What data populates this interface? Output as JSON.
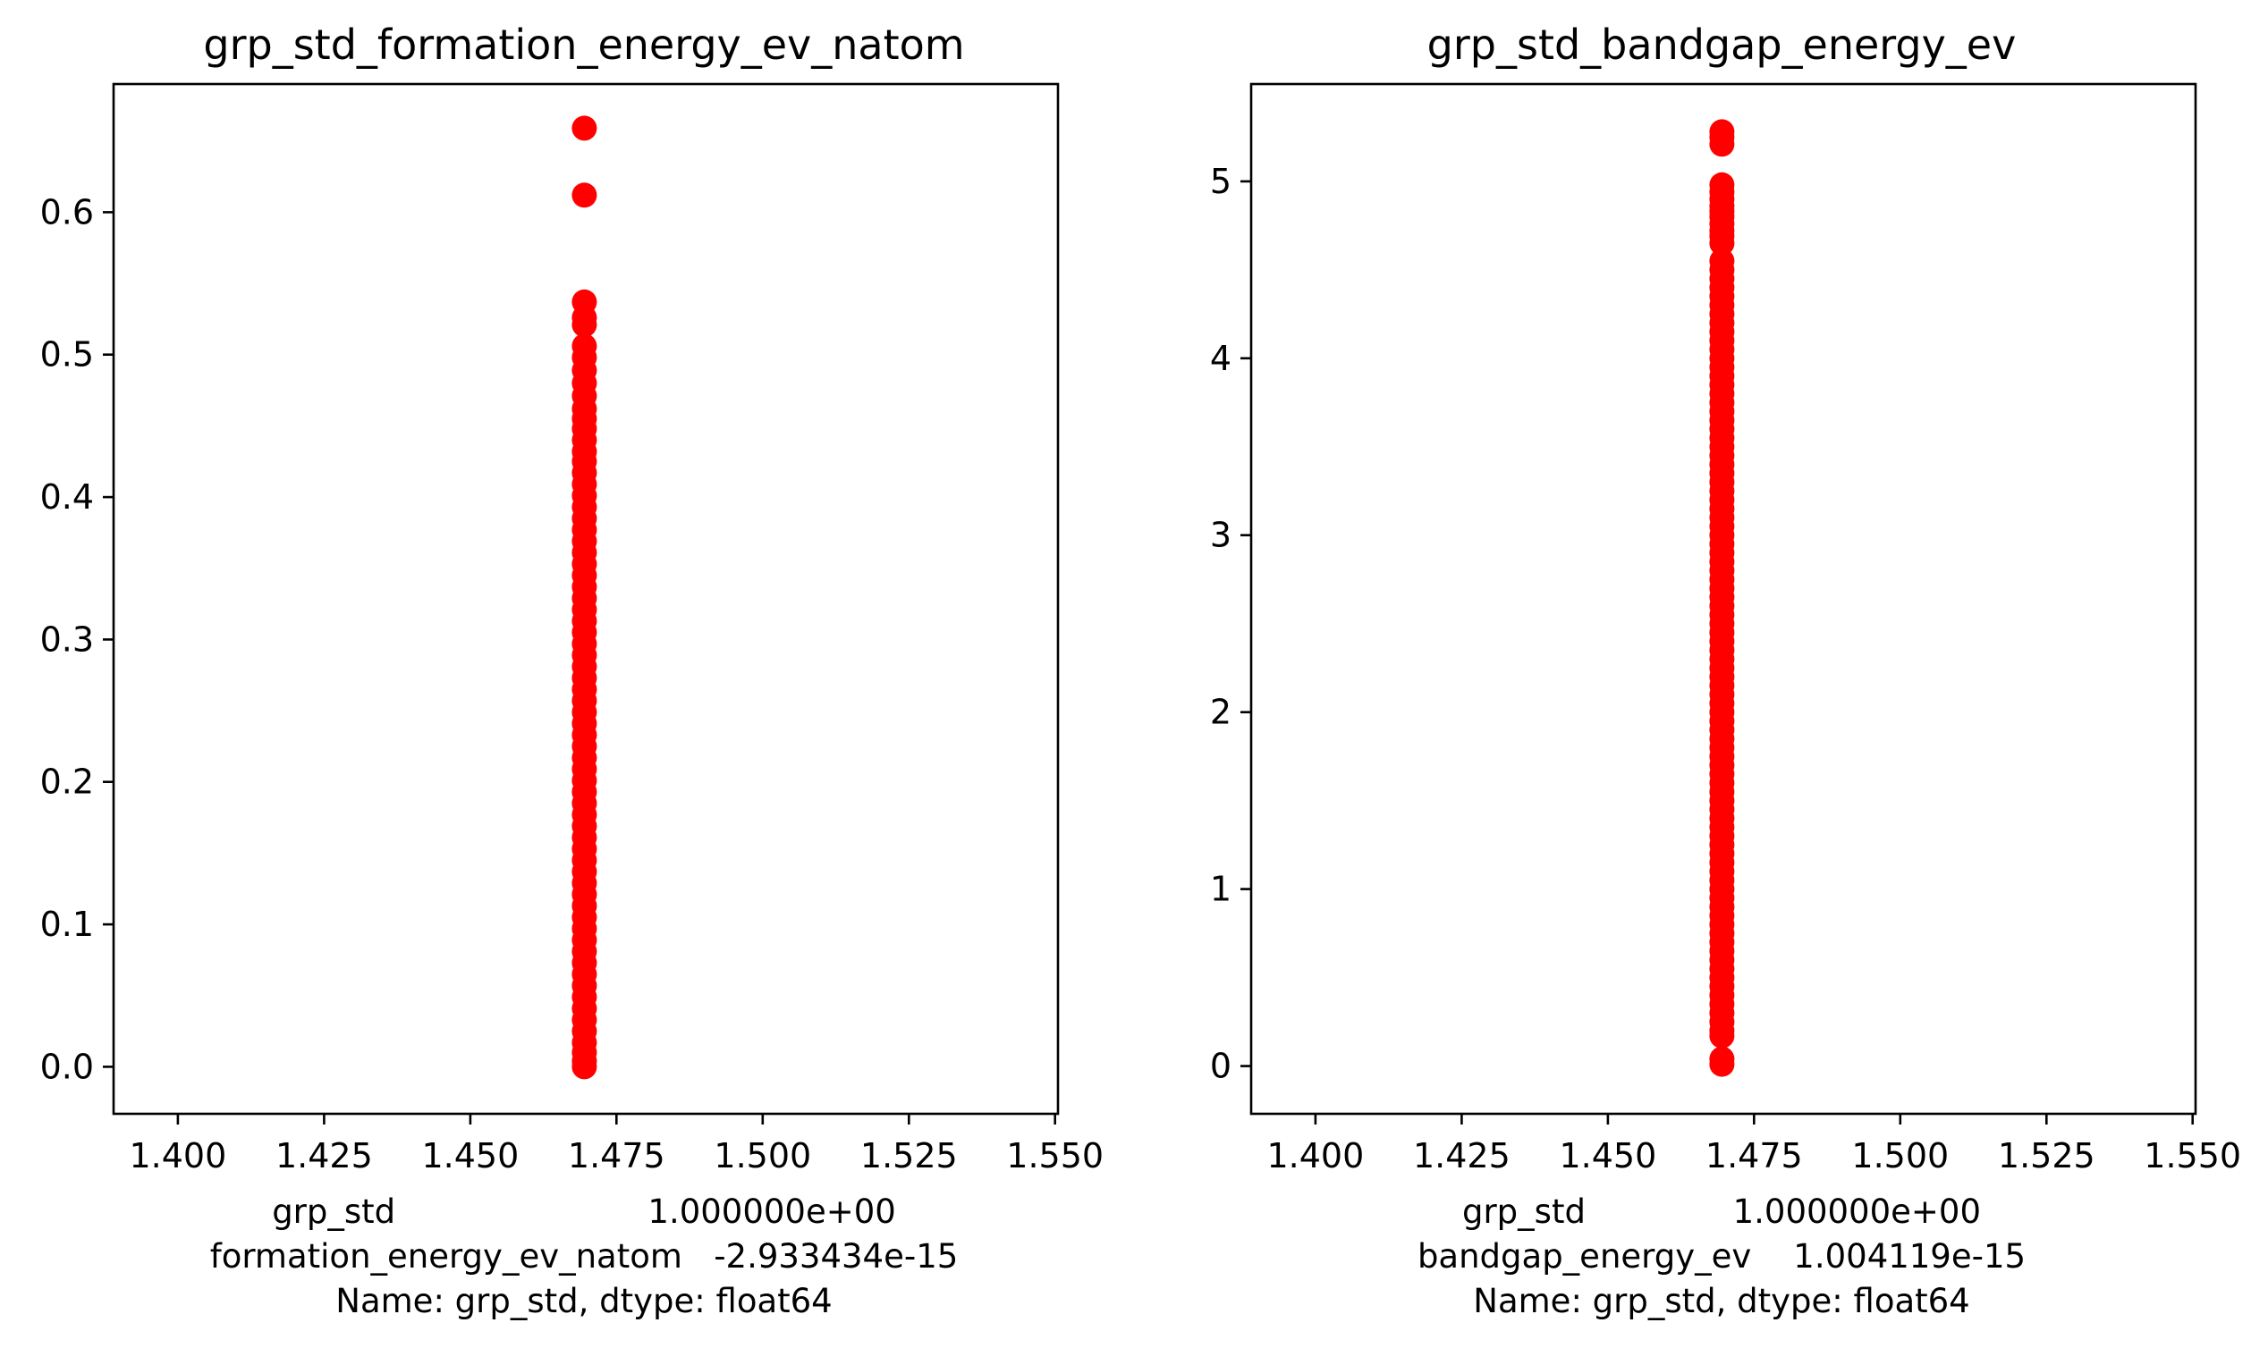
{
  "chart_data": [
    {
      "type": "scatter",
      "title": "grp_std_formation_energy_ev_natom",
      "xlabel_lines": [
        "grp_std                        1.000000e+00",
        "formation_energy_ev_natom   -2.933434e-15",
        "Name: grp_std, dtype: float64"
      ],
      "ylabel": "",
      "xlim": [
        1.389,
        1.5505
      ],
      "ylim": [
        -0.033,
        0.69
      ],
      "xticks": [
        1.4,
        1.425,
        1.45,
        1.475,
        1.5,
        1.525,
        1.55
      ],
      "xtick_labels": [
        "1.400",
        "1.425",
        "1.450",
        "1.475",
        "1.500",
        "1.525",
        "1.550"
      ],
      "yticks": [
        0.0,
        0.1,
        0.2,
        0.3,
        0.4,
        0.5,
        0.6
      ],
      "ytick_labels": [
        "0.0",
        "0.1",
        "0.2",
        "0.3",
        "0.4",
        "0.5",
        "0.6"
      ],
      "marker_color": "#ff0000",
      "grid": false,
      "x_value": 1.4695,
      "y_values": [
        0.659,
        0.612,
        0.537,
        0.526,
        0.521,
        0.506,
        0.498,
        0.489,
        0.48,
        0.471,
        0.462,
        0.455,
        0.448,
        0.44,
        0.432,
        0.425,
        0.417,
        0.409,
        0.401,
        0.393,
        0.385,
        0.377,
        0.369,
        0.361,
        0.353,
        0.345,
        0.337,
        0.329,
        0.321,
        0.313,
        0.305,
        0.297,
        0.289,
        0.281,
        0.273,
        0.265,
        0.257,
        0.249,
        0.241,
        0.233,
        0.225,
        0.217,
        0.209,
        0.201,
        0.193,
        0.185,
        0.177,
        0.169,
        0.161,
        0.153,
        0.145,
        0.137,
        0.129,
        0.121,
        0.113,
        0.105,
        0.097,
        0.089,
        0.081,
        0.073,
        0.065,
        0.057,
        0.049,
        0.041,
        0.033,
        0.025,
        0.017,
        0.01,
        0.004,
        0.0
      ]
    },
    {
      "type": "scatter",
      "title": "grp_std_bandgap_energy_ev",
      "xlabel_lines": [
        "grp_std              1.000000e+00",
        "bandgap_energy_ev    1.004119e-15",
        "Name: grp_std, dtype: float64"
      ],
      "ylabel": "",
      "xlim": [
        1.389,
        1.5505
      ],
      "ylim": [
        -0.27,
        5.55
      ],
      "xticks": [
        1.4,
        1.425,
        1.45,
        1.475,
        1.5,
        1.525,
        1.55
      ],
      "xtick_labels": [
        "1.400",
        "1.425",
        "1.450",
        "1.475",
        "1.500",
        "1.525",
        "1.550"
      ],
      "yticks": [
        0,
        1,
        2,
        3,
        4,
        5
      ],
      "ytick_labels": [
        "0",
        "1",
        "2",
        "3",
        "4",
        "5"
      ],
      "marker_color": "#ff0000",
      "grid": false,
      "x_value": 1.4695,
      "y_values": [
        5.28,
        5.25,
        5.21,
        4.98,
        4.94,
        4.9,
        4.86,
        4.83,
        4.8,
        4.76,
        4.72,
        4.69,
        4.65,
        4.55,
        4.5,
        4.45,
        4.4,
        4.35,
        4.3,
        4.25,
        4.2,
        4.15,
        4.1,
        4.05,
        4.0,
        3.95,
        3.9,
        3.85,
        3.8,
        3.75,
        3.7,
        3.65,
        3.6,
        3.55,
        3.5,
        3.45,
        3.4,
        3.35,
        3.3,
        3.25,
        3.2,
        3.15,
        3.1,
        3.05,
        3.0,
        2.95,
        2.9,
        2.85,
        2.8,
        2.75,
        2.7,
        2.65,
        2.6,
        2.55,
        2.5,
        2.45,
        2.4,
        2.35,
        2.3,
        2.25,
        2.2,
        2.15,
        2.1,
        2.05,
        2.0,
        1.95,
        1.9,
        1.85,
        1.8,
        1.75,
        1.7,
        1.65,
        1.6,
        1.55,
        1.5,
        1.45,
        1.4,
        1.35,
        1.3,
        1.25,
        1.2,
        1.15,
        1.1,
        1.05,
        1.0,
        0.95,
        0.9,
        0.85,
        0.8,
        0.75,
        0.7,
        0.65,
        0.6,
        0.55,
        0.5,
        0.45,
        0.4,
        0.35,
        0.3,
        0.25,
        0.2,
        0.17,
        0.04,
        0.01
      ]
    }
  ]
}
